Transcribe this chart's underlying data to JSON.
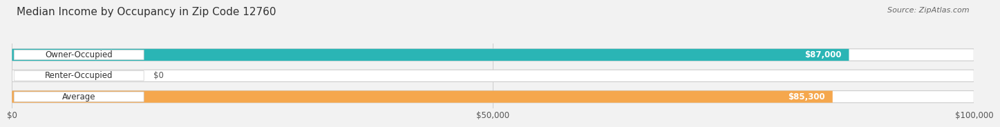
{
  "title": "Median Income by Occupancy in Zip Code 12760",
  "source": "Source: ZipAtlas.com",
  "categories": [
    "Owner-Occupied",
    "Renter-Occupied",
    "Average"
  ],
  "values": [
    87000,
    0,
    85300
  ],
  "bar_colors": [
    "#2ab5b5",
    "#c9a8d4",
    "#f5a74d"
  ],
  "value_labels": [
    "$87,000",
    "$0",
    "$85,300"
  ],
  "xlim": [
    0,
    100000
  ],
  "xticks": [
    0,
    50000,
    100000
  ],
  "xtick_labels": [
    "$0",
    "$50,000",
    "$100,000"
  ],
  "bar_height": 0.55,
  "background_color": "#f2f2f2",
  "title_fontsize": 11,
  "source_fontsize": 8,
  "label_fontsize": 8.5,
  "value_fontsize": 8.5
}
